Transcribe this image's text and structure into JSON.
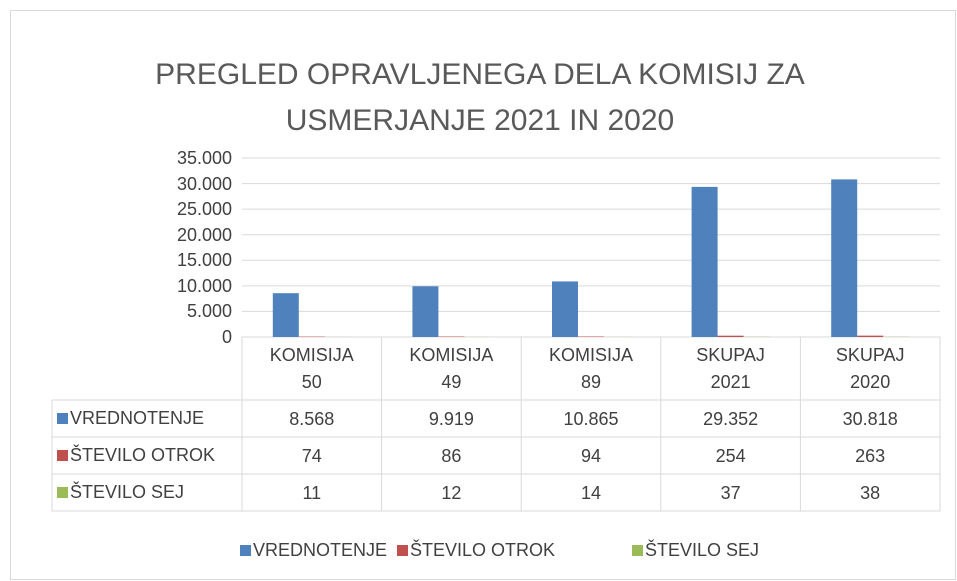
{
  "chart_data": {
    "type": "bar",
    "title": "PREGLED OPRAVLJENEGA DELA KOMISIJ ZA USMERJANJE 2021 IN 2020",
    "categories": [
      "KOMISIJA 50",
      "KOMISIJA 49",
      "KOMISIJA 89",
      "SKUPAJ 2021",
      "SKUPAJ 2020"
    ],
    "series": [
      {
        "name": "VREDNOTENJE",
        "color": "#4f81bd",
        "values": [
          8568,
          9919,
          10865,
          29352,
          30818
        ],
        "value_labels": [
          "8.568",
          "9.919",
          "10.865",
          "29.352",
          "30.818"
        ]
      },
      {
        "name": "ŠTEVILO OTROK",
        "color": "#c0504d",
        "values": [
          74,
          86,
          94,
          254,
          263
        ]
      },
      {
        "name": "ŠTEVILO SEJ",
        "color": "#9bbb59",
        "values": [
          11,
          12,
          14,
          37,
          38
        ]
      }
    ],
    "ylim": [
      0,
      35000
    ],
    "yticks": [
      0,
      {
        "value": 5000,
        "label": "5.000"
      },
      {
        "value": 10000,
        "label": "10.000"
      },
      {
        "value": 15000,
        "label": "15.000"
      },
      {
        "value": 20000,
        "label": "20.000"
      },
      {
        "value": 25000,
        "label": "25.000"
      },
      {
        "value": 30000,
        "label": "30.000"
      },
      {
        "value": 35000,
        "label": "35.000"
      }
    ],
    "grid": true,
    "legend": "bottom",
    "data_table": true
  }
}
